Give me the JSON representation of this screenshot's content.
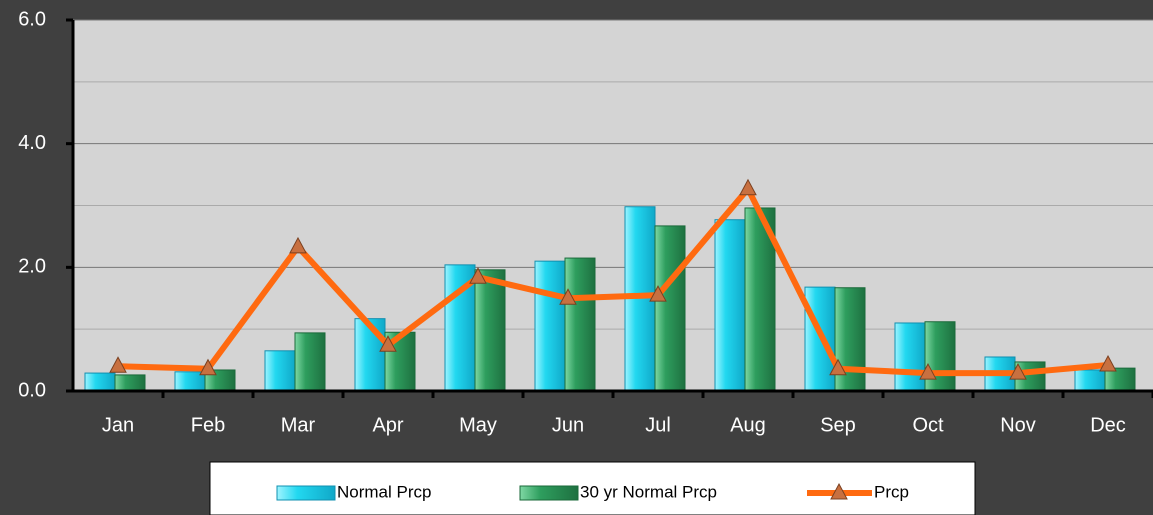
{
  "chart_data": {
    "type": "bar_line",
    "categories": [
      "Jan",
      "Feb",
      "Mar",
      "Apr",
      "May",
      "Jun",
      "Jul",
      "Aug",
      "Sep",
      "Oct",
      "Nov",
      "Dec"
    ],
    "series": [
      {
        "name": "Normal Prcp",
        "type": "bar",
        "color": "#22d8f0",
        "values": [
          0.29,
          0.31,
          0.65,
          1.17,
          2.04,
          2.1,
          2.98,
          2.77,
          1.68,
          1.1,
          0.55,
          0.34
        ]
      },
      {
        "name": "30 yr Normal Prcp",
        "type": "bar",
        "color": "#2e9e5e",
        "values": [
          0.26,
          0.34,
          0.94,
          0.95,
          1.96,
          2.15,
          2.67,
          2.96,
          1.67,
          1.12,
          0.47,
          0.37
        ]
      },
      {
        "name": "Prcp",
        "type": "line",
        "color": "#ff6a10",
        "values": [
          0.4,
          0.36,
          2.33,
          0.74,
          1.84,
          1.5,
          1.55,
          3.27,
          0.36,
          0.29,
          0.29,
          0.42
        ]
      }
    ],
    "ylim": [
      0,
      6
    ],
    "yticks": [
      {
        "value": 0,
        "label": "0.0"
      },
      {
        "value": 2,
        "label": "2.0"
      },
      {
        "value": 4,
        "label": "4.0"
      },
      {
        "value": 6,
        "label": "6.0"
      }
    ],
    "minor_grid": [
      1,
      3,
      5
    ],
    "grid": true
  }
}
